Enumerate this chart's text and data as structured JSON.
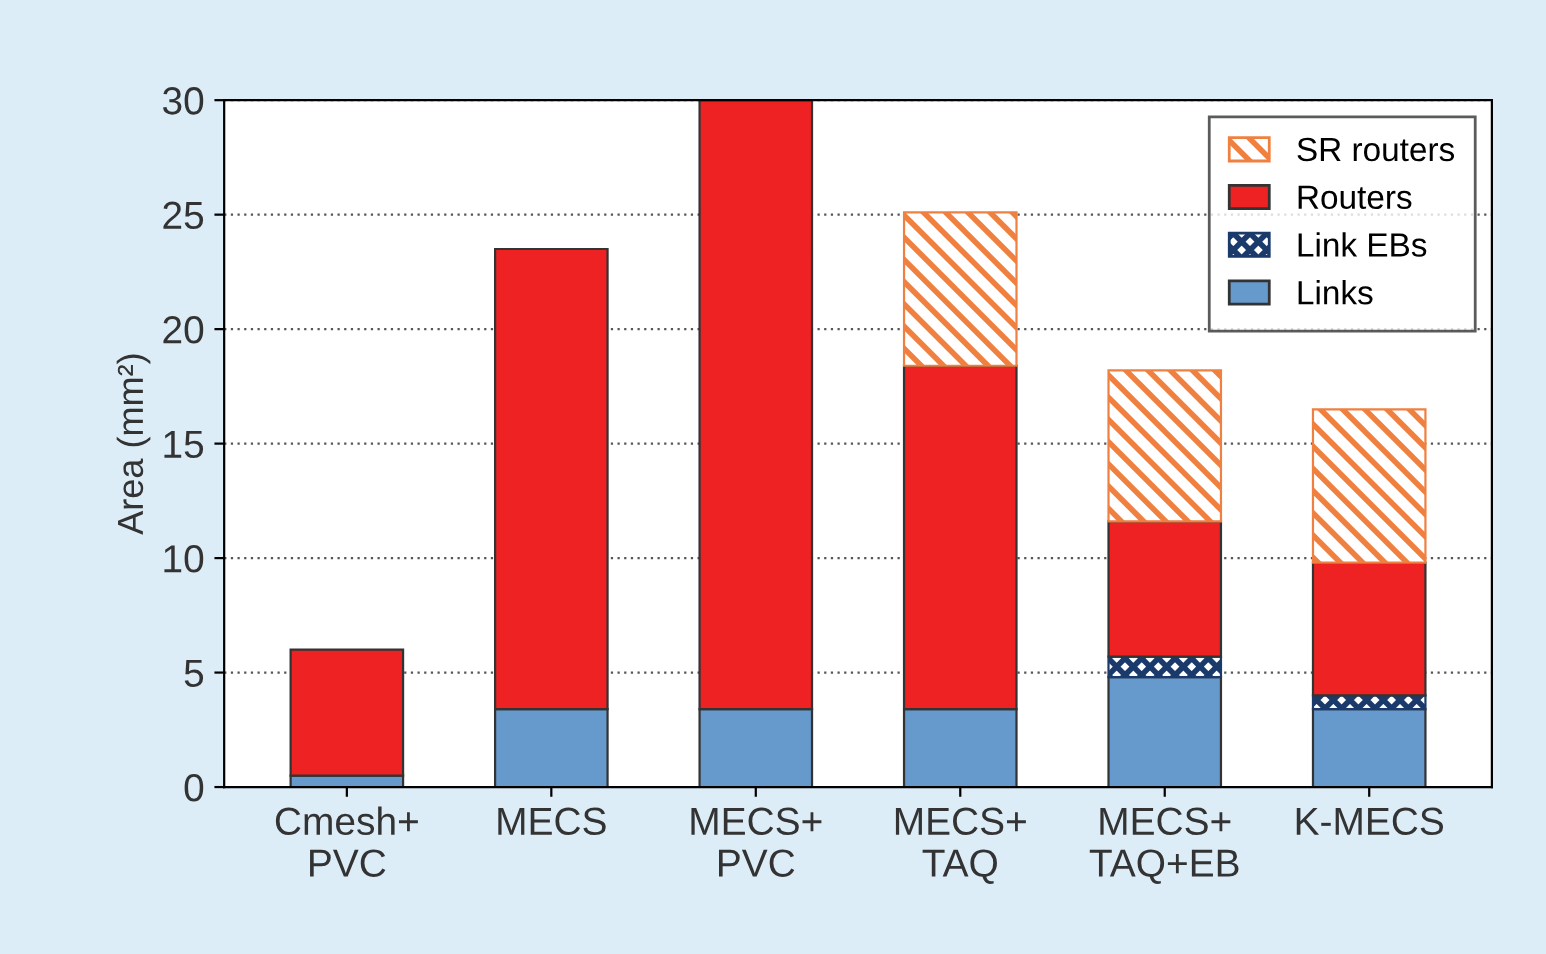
{
  "chart_data": {
    "type": "bar",
    "stacked": true,
    "ylabel": "Area (mm²)",
    "categories": [
      "Cmesh+\nPVC",
      "MECS",
      "MECS+\nPVC",
      "MECS+\nTAQ",
      "MECS+\nTAQ+EB",
      "K-MECS"
    ],
    "series": [
      {
        "name": "Links",
        "color": "#6699cc",
        "values": [
          0.5,
          3.4,
          3.4,
          3.4,
          4.8,
          3.4
        ]
      },
      {
        "name": "Link EBs",
        "color": "#1a3a6b",
        "values": [
          null,
          null,
          null,
          null,
          0.9,
          0.6
        ]
      },
      {
        "name": "Routers",
        "color": "#ee2222",
        "values": [
          5.5,
          20.1,
          26.6,
          15.0,
          5.9,
          5.8
        ]
      },
      {
        "name": "SR routers",
        "color": "#f08040",
        "values": [
          null,
          null,
          null,
          6.7,
          6.6,
          6.7
        ]
      }
    ],
    "ylim": [
      0,
      30
    ],
    "yticks": [
      0,
      5,
      10,
      15,
      20,
      25,
      30
    ],
    "grid": "y",
    "legend": "top right"
  }
}
